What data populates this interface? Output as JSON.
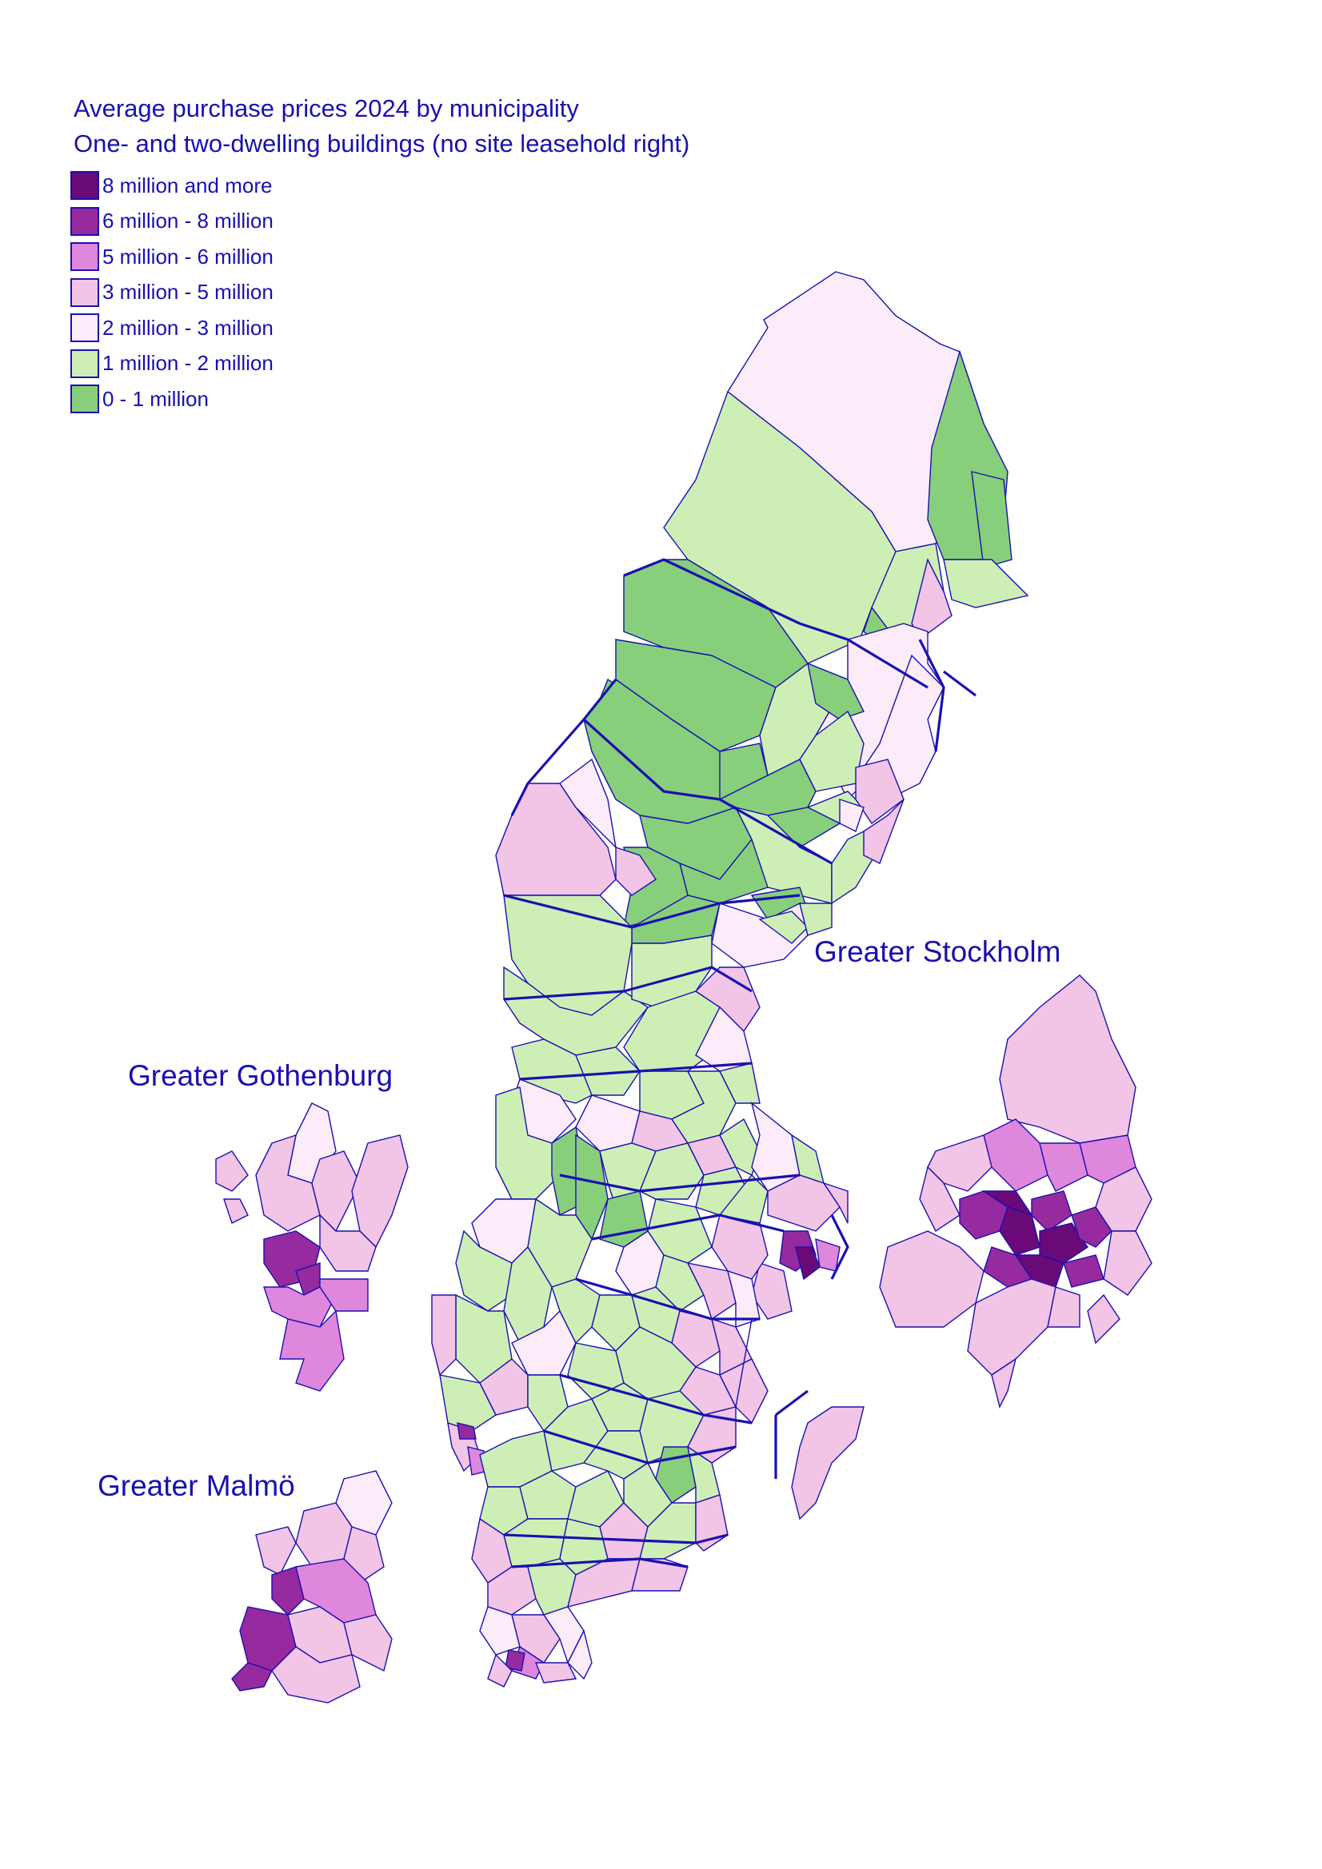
{
  "title": "Average purchase prices 2024 by municipality",
  "subtitle": "One- and two-dwelling buildings (no site leasehold right)",
  "legend": [
    {
      "label": "8 million and more",
      "color": "#6a0a78"
    },
    {
      "label": "6 million - 8 million",
      "color": "#962a9e"
    },
    {
      "label": "5 million - 6 million",
      "color": "#df86dd"
    },
    {
      "label": "3 million - 5 million",
      "color": "#f2c4e6"
    },
    {
      "label": "2 million - 3 million",
      "color": "#fcecfa"
    },
    {
      "label": "1 million - 2 million",
      "color": "#cdefb5"
    },
    {
      "label": "0 - 1 million",
      "color": "#87cf7b"
    }
  ],
  "insets": {
    "stockholm": "Greater Stockholm",
    "gothenburg": "Greater Gothenburg",
    "malmo": "Greater Malmö"
  },
  "colors": {
    "border": "#1a10b0",
    "text": "#1a10b0"
  }
}
